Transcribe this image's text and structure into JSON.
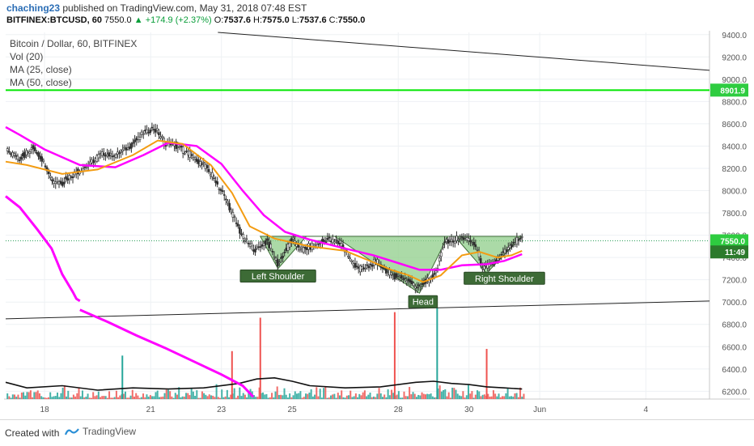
{
  "header": {
    "author": "chaching23",
    "published_text": "published on TradingView.com, May 31, 2018 07:48 EST",
    "symbol": "BITFINEX:BTCUSD, 60",
    "last": "7550.0",
    "change": "▲ +174.9 (+2.37%)",
    "ohlc_o": "O:",
    "ohlc_o_val": "7537.6",
    "ohlc_h": "H:",
    "ohlc_h_val": "7575.0",
    "ohlc_l": "L:",
    "ohlc_l_val": "7537.6",
    "ohlc_c": "C:",
    "ohlc_c_val": "7550.0"
  },
  "legend": [
    "Bitcoin / Dollar, 60, BITFINEX",
    "Vol (20)",
    "MA (25, close)",
    "MA (50, close)"
  ],
  "footer": {
    "created_with": "Created with",
    "brand": "TradingView"
  },
  "colors": {
    "candle_up": "#2e2e2e",
    "candle_down": "#2e2e2e",
    "ma25": "#f39c12",
    "ma50": "#ff00ff",
    "vol_up": "#26a69a",
    "vol_down": "#ef5350",
    "resistance": "#00e600",
    "pattern_fill": "#8fce8a",
    "pattern_label_bg": "#3d6b36",
    "price_label_green": "#2ecc40",
    "price_label_dark": "#2c7a2c"
  },
  "chart_data": {
    "type": "line",
    "title": "Bitcoin / Dollar, 60, BITFINEX",
    "y_ticks": [
      9400,
      9200,
      9000,
      8800,
      8600,
      8400,
      8200,
      8000,
      7800,
      7600,
      7400,
      7200,
      7000,
      6800,
      6600,
      6400,
      6200
    ],
    "y_tick_labels": [
      "9400.0",
      "9200.0",
      "9000.0",
      "8800.0",
      "8600.0",
      "8400.0",
      "8200.0",
      "8000.0",
      "7800.0",
      "7600.0",
      "7400.0",
      "7200.0",
      "7000.0",
      "6800.0",
      "6600.0",
      "6400.0",
      "6200.0"
    ],
    "ylim": [
      6130,
      9420
    ],
    "x_ticks": [
      {
        "label": "18",
        "day": 18
      },
      {
        "label": "21",
        "day": 21
      },
      {
        "label": "23",
        "day": 23
      },
      {
        "label": "25",
        "day": 25
      },
      {
        "label": "28",
        "day": 28
      },
      {
        "label": "30",
        "day": 30
      },
      {
        "label": "Jun",
        "day": 32
      },
      {
        "label": "4",
        "day": 35
      }
    ],
    "xlim": [
      16.9,
      36.8
    ],
    "price_key_points": [
      [
        16.9,
        8360
      ],
      [
        17.3,
        8300
      ],
      [
        17.7,
        8380
      ],
      [
        18.0,
        8250
      ],
      [
        18.2,
        8100
      ],
      [
        18.5,
        8070
      ],
      [
        18.8,
        8150
      ],
      [
        19.2,
        8220
      ],
      [
        19.6,
        8330
      ],
      [
        20.0,
        8320
      ],
      [
        20.4,
        8390
      ],
      [
        20.8,
        8520
      ],
      [
        21.1,
        8560
      ],
      [
        21.4,
        8440
      ],
      [
        21.8,
        8390
      ],
      [
        22.2,
        8300
      ],
      [
        22.6,
        8200
      ],
      [
        22.9,
        8050
      ],
      [
        23.2,
        7880
      ],
      [
        23.5,
        7650
      ],
      [
        23.7,
        7540
      ],
      [
        24.0,
        7470
      ],
      [
        24.3,
        7550
      ],
      [
        24.6,
        7340
      ],
      [
        25.0,
        7560
      ],
      [
        25.3,
        7470
      ],
      [
        25.6,
        7500
      ],
      [
        26.0,
        7560
      ],
      [
        26.4,
        7520
      ],
      [
        26.7,
        7350
      ],
      [
        27.0,
        7290
      ],
      [
        27.4,
        7360
      ],
      [
        27.8,
        7250
      ],
      [
        28.2,
        7210
      ],
      [
        28.5,
        7140
      ],
      [
        28.8,
        7180
      ],
      [
        29.1,
        7280
      ],
      [
        29.3,
        7540
      ],
      [
        29.6,
        7560
      ],
      [
        29.9,
        7580
      ],
      [
        30.2,
        7500
      ],
      [
        30.4,
        7300
      ],
      [
        30.7,
        7350
      ],
      [
        31.0,
        7440
      ],
      [
        31.3,
        7540
      ],
      [
        31.5,
        7560
      ]
    ],
    "ma25_key_points": [
      [
        16.9,
        8260
      ],
      [
        17.5,
        8230
      ],
      [
        18.5,
        8150
      ],
      [
        19.5,
        8190
      ],
      [
        20.5,
        8320
      ],
      [
        21.2,
        8450
      ],
      [
        21.9,
        8420
      ],
      [
        22.7,
        8230
      ],
      [
        23.3,
        7980
      ],
      [
        23.8,
        7680
      ],
      [
        24.5,
        7570
      ],
      [
        25.5,
        7500
      ],
      [
        26.5,
        7460
      ],
      [
        27.2,
        7370
      ],
      [
        27.8,
        7290
      ],
      [
        28.3,
        7240
      ],
      [
        28.7,
        7180
      ],
      [
        29.2,
        7240
      ],
      [
        29.8,
        7420
      ],
      [
        30.3,
        7450
      ],
      [
        30.8,
        7400
      ],
      [
        31.2,
        7420
      ],
      [
        31.5,
        7460
      ]
    ],
    "ma50_key_points": [
      [
        16.9,
        8570
      ],
      [
        17.3,
        8500
      ],
      [
        18.0,
        8370
      ],
      [
        19.0,
        8230
      ],
      [
        20.0,
        8210
      ],
      [
        20.8,
        8320
      ],
      [
        21.5,
        8430
      ],
      [
        22.3,
        8400
      ],
      [
        23.0,
        8240
      ],
      [
        23.6,
        8000
      ],
      [
        24.2,
        7780
      ],
      [
        24.8,
        7630
      ],
      [
        25.5,
        7560
      ],
      [
        26.5,
        7480
      ],
      [
        27.3,
        7420
      ],
      [
        28.0,
        7350
      ],
      [
        28.6,
        7290
      ],
      [
        29.2,
        7290
      ],
      [
        29.8,
        7330
      ],
      [
        30.5,
        7340
      ],
      [
        31.0,
        7370
      ],
      [
        31.5,
        7430
      ]
    ],
    "ma50_lower_key_points": [
      [
        16.9,
        7950
      ],
      [
        17.3,
        7850
      ],
      [
        17.8,
        7650
      ],
      [
        18.2,
        7480
      ],
      [
        18.5,
        7250
      ],
      [
        18.8,
        7090
      ],
      [
        18.9,
        7030
      ],
      [
        19.0,
        7010
      ]
    ],
    "ma50_volume_key_points": [
      [
        19.0,
        6930
      ],
      [
        19.8,
        6820
      ],
      [
        20.6,
        6700
      ],
      [
        21.4,
        6590
      ],
      [
        22.2,
        6470
      ],
      [
        23.0,
        6350
      ],
      [
        23.6,
        6250
      ],
      [
        23.9,
        6150
      ]
    ],
    "vol_ma_key_points": [
      [
        16.9,
        6280
      ],
      [
        17.5,
        6230
      ],
      [
        18.5,
        6250
      ],
      [
        19.5,
        6210
      ],
      [
        20.5,
        6230
      ],
      [
        21.5,
        6220
      ],
      [
        22.5,
        6230
      ],
      [
        23.5,
        6270
      ],
      [
        24.0,
        6310
      ],
      [
        24.5,
        6320
      ],
      [
        25.0,
        6290
      ],
      [
        25.5,
        6250
      ],
      [
        26.5,
        6230
      ],
      [
        27.5,
        6240
      ],
      [
        28.5,
        6280
      ],
      [
        29.0,
        6290
      ],
      [
        29.5,
        6270
      ],
      [
        30.0,
        6260
      ],
      [
        30.5,
        6240
      ],
      [
        31.0,
        6230
      ],
      [
        31.5,
        6220
      ]
    ],
    "volume_spikes": [
      {
        "day": 24.1,
        "top": 6860,
        "color": "down"
      },
      {
        "day": 27.9,
        "top": 6910,
        "color": "down"
      },
      {
        "day": 29.1,
        "top": 6950,
        "color": "up"
      },
      {
        "day": 30.5,
        "top": 6580,
        "color": "down"
      },
      {
        "day": 20.2,
        "top": 6520,
        "color": "up"
      },
      {
        "day": 23.3,
        "top": 6560,
        "color": "down"
      }
    ],
    "trendline_upper": [
      [
        22.9,
        9420
      ],
      [
        36.8,
        9080
      ]
    ],
    "trendline_lower": [
      [
        16.9,
        6850
      ],
      [
        36.8,
        7010
      ]
    ],
    "resistance_level": 8901.9,
    "neckline": 7590,
    "pattern": {
      "left_shoulder": {
        "label": "Left Shoulder",
        "points": [
          [
            24.1,
            7590
          ],
          [
            24.6,
            7300
          ],
          [
            25.4,
            7590
          ]
        ]
      },
      "head": {
        "label": "Head",
        "points": [
          [
            26.2,
            7590
          ],
          [
            28.6,
            7080
          ],
          [
            29.4,
            7590
          ]
        ]
      },
      "right_shoulder": {
        "label": "Right Shoulder",
        "points": [
          [
            29.6,
            7590
          ],
          [
            30.5,
            7260
          ],
          [
            31.5,
            7590
          ]
        ]
      }
    },
    "price_labels": [
      {
        "value": 8901.9,
        "text": "8901.9",
        "style": "green"
      },
      {
        "value": 7550.0,
        "text": "7550.0",
        "style": "green"
      },
      {
        "value": 7450.0,
        "text": "11:49",
        "style": "dark"
      }
    ]
  }
}
